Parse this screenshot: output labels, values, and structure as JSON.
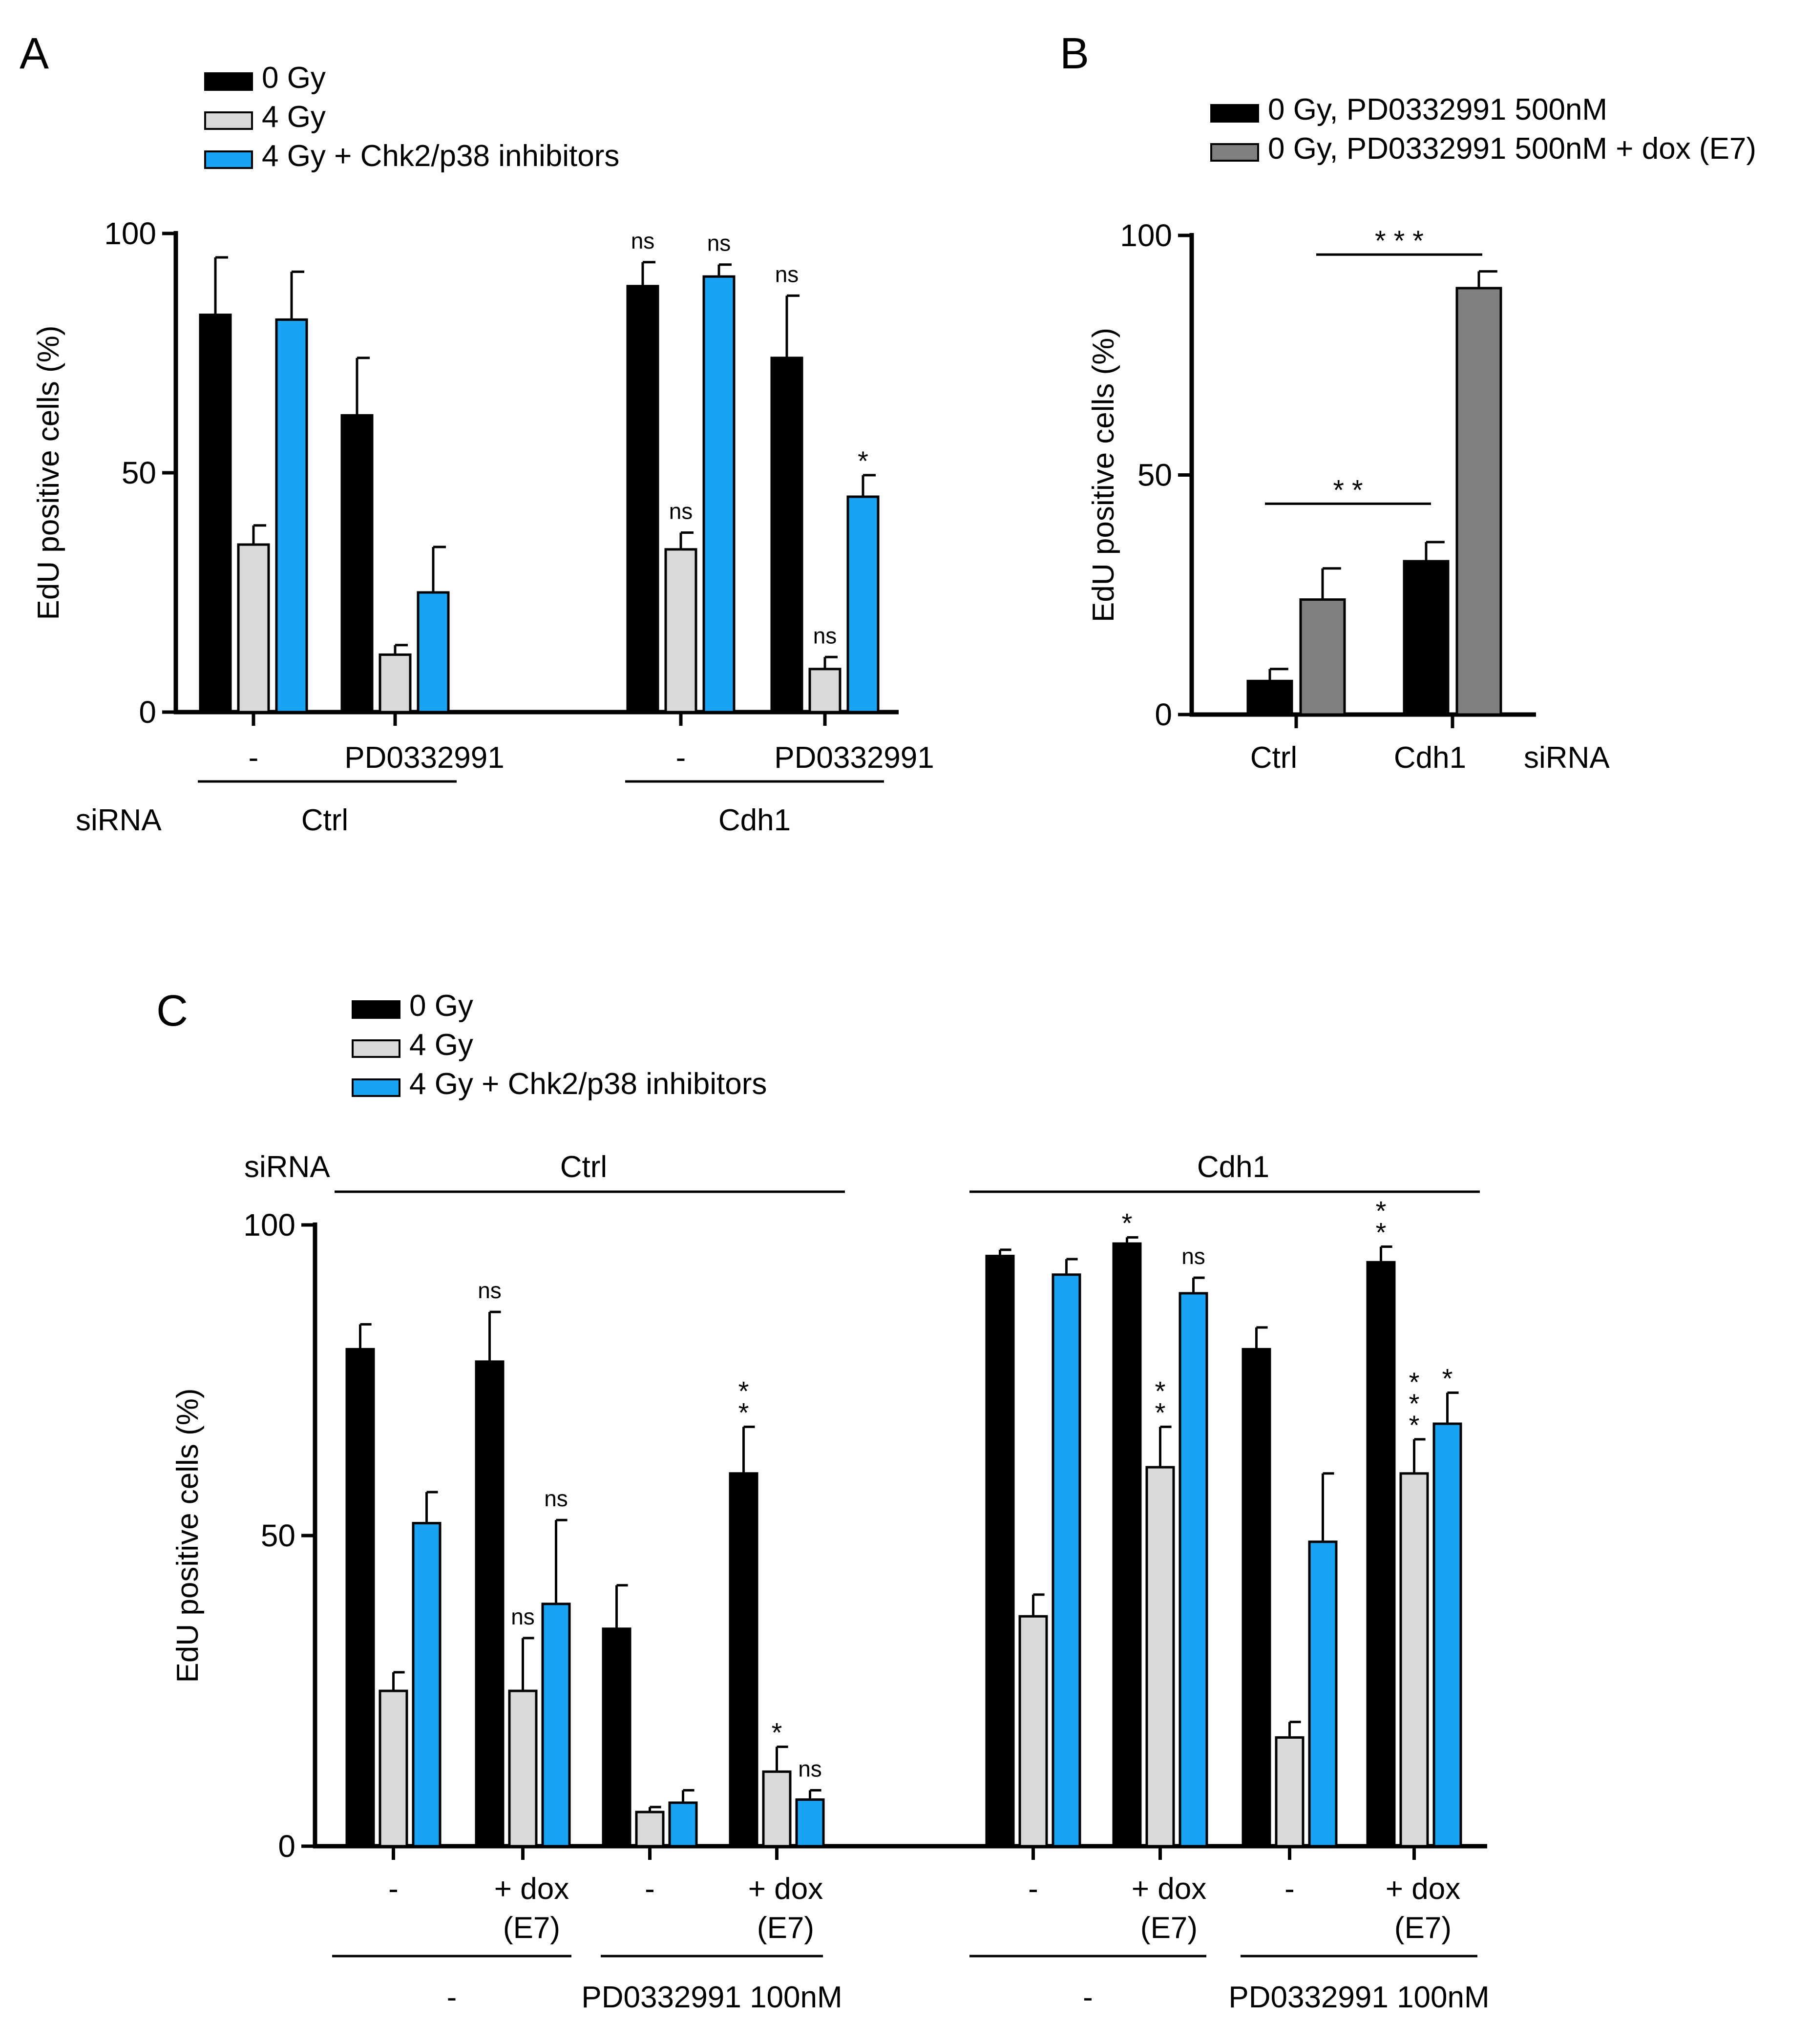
{
  "chart_data": [
    {
      "panel": "A",
      "type": "bar",
      "ylabel": "EdU positive cells (%)",
      "ylim": [
        0,
        100
      ],
      "yticks": [
        "0",
        "50",
        "100"
      ],
      "legend": {
        "placement": "top-left",
        "entries": [
          "0 Gy",
          "4 Gy",
          "4 Gy + Chk2/p38 inhibitors"
        ]
      },
      "colors": [
        "#000000",
        "#d9d9d9",
        "#1aa3f5"
      ],
      "row_label": "siRNA",
      "categories": [
        "Ctrl / -",
        "Ctrl / PD0332991",
        "Cdh1 / -",
        "Cdh1 / PD0332991"
      ],
      "tick_labels": [
        "-",
        "PD0332991",
        "-",
        "PD0332991"
      ],
      "group_labels": [
        "Ctrl",
        "Cdh1"
      ],
      "series": [
        {
          "name": "0 Gy",
          "values": [
            83,
            62,
            89,
            74
          ],
          "errors": [
            12,
            12,
            5,
            13
          ],
          "sig": [
            "",
            "",
            "ns",
            "ns"
          ]
        },
        {
          "name": "4 Gy",
          "values": [
            35,
            12,
            34,
            9
          ],
          "errors": [
            4,
            2,
            3.5,
            2.5
          ],
          "sig": [
            "",
            "",
            "ns",
            "ns"
          ]
        },
        {
          "name": "4 Gy + Chk2/p38 inhibitors",
          "values": [
            82,
            25,
            91,
            45
          ],
          "errors": [
            10,
            9.5,
            2.5,
            4.5
          ],
          "sig": [
            "",
            "",
            "ns",
            "*"
          ]
        }
      ]
    },
    {
      "panel": "B",
      "type": "bar",
      "ylabel": "EdU positive cells (%)",
      "ylim": [
        0,
        100
      ],
      "yticks": [
        "0",
        "50",
        "100"
      ],
      "legend": {
        "placement": "top",
        "entries": [
          "0 Gy, PD0332991 500nM",
          "0 Gy, PD0332991 500nM + dox (E7)"
        ]
      },
      "colors": [
        "#000000",
        "#808080"
      ],
      "categories": [
        "Ctrl",
        "Cdh1"
      ],
      "axis_suffix": "siRNA",
      "series": [
        {
          "name": "0 Gy, PD0332991 500nM",
          "values": [
            7,
            32
          ],
          "errors": [
            2.5,
            4
          ]
        },
        {
          "name": "0 Gy, PD0332991 500nM + dox (E7)",
          "values": [
            24,
            89
          ],
          "errors": [
            6.5,
            3.5
          ]
        }
      ],
      "comparisons": [
        {
          "label": "* *",
          "level": 44
        },
        {
          "label": "* * *",
          "level": 96
        }
      ]
    },
    {
      "panel": "C",
      "type": "bar",
      "ylabel": "EdU positive cells (%)",
      "ylim": [
        0,
        100
      ],
      "yticks": [
        "0",
        "50",
        "100"
      ],
      "legend": {
        "placement": "top-left",
        "entries": [
          "0 Gy",
          "4 Gy",
          "4 Gy + Chk2/p38 inhibitors"
        ]
      },
      "colors": [
        "#000000",
        "#d9d9d9",
        "#1aa3f5"
      ],
      "row_label": "siRNA",
      "sirna_labels": [
        "Ctrl",
        "Cdh1"
      ],
      "categories": [
        "Ctrl / - / -",
        "Ctrl / - / + dox (E7)",
        "Ctrl / PD0332991 / -",
        "Ctrl / PD0332991 / + dox (E7)",
        "Cdh1 / - / -",
        "Cdh1 / - / + dox (E7)",
        "Cdh1 / PD0332991 / -",
        "Cdh1 / PD0332991 / + dox (E7)"
      ],
      "tick_labels": [
        [
          "-"
        ],
        [
          "+ dox",
          "(E7)"
        ],
        [
          "-"
        ],
        [
          "+ dox",
          "(E7)"
        ],
        [
          "-"
        ],
        [
          "+ dox",
          "(E7)"
        ],
        [
          "-"
        ],
        [
          "+ dox",
          "(E7)"
        ]
      ],
      "treatment_labels": [
        "-",
        "PD0332991 100nM",
        "-",
        "PD0332991 100nM"
      ],
      "series": [
        {
          "name": "0 Gy",
          "values": [
            80,
            78,
            35,
            60,
            95,
            97,
            80,
            94
          ],
          "errors": [
            4,
            8,
            7,
            7.5,
            1,
            1,
            3.5,
            2.5
          ],
          "sig": [
            "",
            "ns",
            "",
            "* *",
            "",
            "*",
            "",
            "* *"
          ]
        },
        {
          "name": "4 Gy",
          "values": [
            25,
            25,
            5.5,
            12,
            37,
            61,
            17.5,
            60
          ],
          "errors": [
            3,
            8.5,
            0.8,
            4,
            3.5,
            6.5,
            2.5,
            5.5
          ],
          "sig": [
            "",
            "ns",
            "",
            "*",
            "",
            "* *",
            "",
            "* * *"
          ]
        },
        {
          "name": "4 Gy + Chk2/p38 inhibitors",
          "values": [
            52,
            39,
            7,
            7.5,
            92,
            89,
            49,
            68
          ],
          "errors": [
            5,
            13.5,
            2,
            1.5,
            2.5,
            2.5,
            11,
            5
          ],
          "sig": [
            "",
            "ns",
            "",
            "ns",
            "",
            "ns",
            "",
            "*"
          ]
        }
      ]
    }
  ],
  "panels": {
    "a": "A",
    "b": "B",
    "c": "C"
  }
}
